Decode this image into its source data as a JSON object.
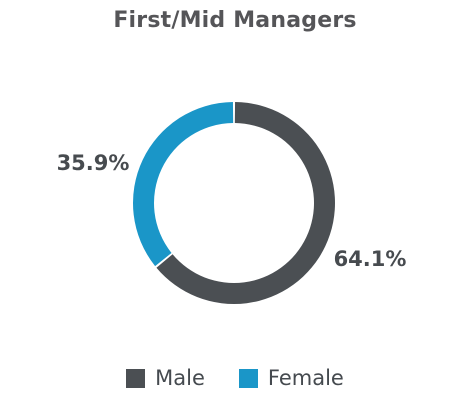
{
  "chart_data": {
    "type": "pie",
    "variant": "donut",
    "title": "First/Mid Managers",
    "slices": [
      {
        "label": "Male",
        "value": 64.1,
        "display": "64.1%",
        "color": "#4b4f53"
      },
      {
        "label": "Female",
        "value": 35.9,
        "display": "35.9%",
        "color": "#1a96c8"
      }
    ],
    "label_color": "#474b4f",
    "legend_position": "bottom"
  }
}
